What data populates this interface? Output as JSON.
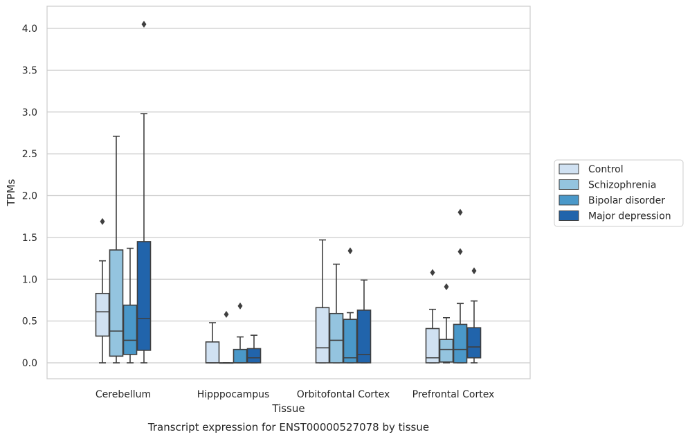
{
  "chart_data": {
    "type": "box",
    "caption": "Transcript expression for ENST00000527078 by tissue",
    "xlabel": "Tissue",
    "ylabel": "TPMs",
    "ylim": [
      -0.19,
      4.27
    ],
    "yticks": [
      0.0,
      0.5,
      1.0,
      1.5,
      2.0,
      2.5,
      3.0,
      3.5,
      4.0
    ],
    "ytick_labels": [
      "0.0",
      "0.5",
      "1.0",
      "1.5",
      "2.0",
      "2.5",
      "3.0",
      "3.5",
      "4.0"
    ],
    "grid": true,
    "legend_position": "right",
    "categories": [
      "Cerebellum",
      "Hipppocampus",
      "Orbitofontal Cortex",
      "Prefrontal Cortex"
    ],
    "series": [
      {
        "name": "Control",
        "color": "#d0e1f2",
        "boxes": [
          {
            "min": 0.0,
            "q1": 0.32,
            "median": 0.61,
            "q3": 0.83,
            "max": 1.22,
            "outliers": [
              1.69
            ]
          },
          {
            "min": 0.0,
            "q1": 0.0,
            "median": 0.0,
            "q3": 0.25,
            "max": 0.48,
            "outliers": []
          },
          {
            "min": 0.0,
            "q1": 0.0,
            "median": 0.18,
            "q3": 0.66,
            "max": 1.47,
            "outliers": []
          },
          {
            "min": 0.0,
            "q1": 0.0,
            "median": 0.06,
            "q3": 0.41,
            "max": 0.64,
            "outliers": [
              1.08
            ]
          }
        ]
      },
      {
        "name": "Schizophrenia",
        "color": "#94c4df",
        "boxes": [
          {
            "min": 0.0,
            "q1": 0.08,
            "median": 0.38,
            "q3": 1.35,
            "max": 2.71,
            "outliers": []
          },
          {
            "min": 0.0,
            "q1": 0.0,
            "median": 0.0,
            "q3": 0.0,
            "max": 0.0,
            "outliers": [
              0.58
            ]
          },
          {
            "min": 0.0,
            "q1": 0.0,
            "median": 0.27,
            "q3": 0.59,
            "max": 1.18,
            "outliers": []
          },
          {
            "min": 0.0,
            "q1": 0.01,
            "median": 0.16,
            "q3": 0.28,
            "max": 0.54,
            "outliers": [
              0.91
            ]
          }
        ]
      },
      {
        "name": "Bipolar disorder",
        "color": "#4a98c9",
        "boxes": [
          {
            "min": 0.0,
            "q1": 0.1,
            "median": 0.27,
            "q3": 0.69,
            "max": 1.37,
            "outliers": []
          },
          {
            "min": 0.0,
            "q1": 0.0,
            "median": 0.0,
            "q3": 0.16,
            "max": 0.31,
            "outliers": [
              0.68
            ]
          },
          {
            "min": 0.0,
            "q1": 0.0,
            "median": 0.06,
            "q3": 0.52,
            "max": 0.6,
            "outliers": [
              1.34
            ]
          },
          {
            "min": 0.0,
            "q1": 0.0,
            "median": 0.16,
            "q3": 0.46,
            "max": 0.71,
            "outliers": [
              1.33,
              1.8
            ]
          }
        ]
      },
      {
        "name": "Major depression",
        "color": "#2164ab",
        "boxes": [
          {
            "min": 0.0,
            "q1": 0.15,
            "median": 0.53,
            "q3": 1.45,
            "max": 2.98,
            "outliers": [
              4.05
            ]
          },
          {
            "min": 0.0,
            "q1": 0.0,
            "median": 0.06,
            "q3": 0.17,
            "max": 0.33,
            "outliers": []
          },
          {
            "min": 0.0,
            "q1": 0.0,
            "median": 0.1,
            "q3": 0.63,
            "max": 0.99,
            "outliers": []
          },
          {
            "min": 0.0,
            "q1": 0.06,
            "median": 0.19,
            "q3": 0.42,
            "max": 0.74,
            "outliers": [
              1.1
            ]
          }
        ]
      }
    ]
  }
}
